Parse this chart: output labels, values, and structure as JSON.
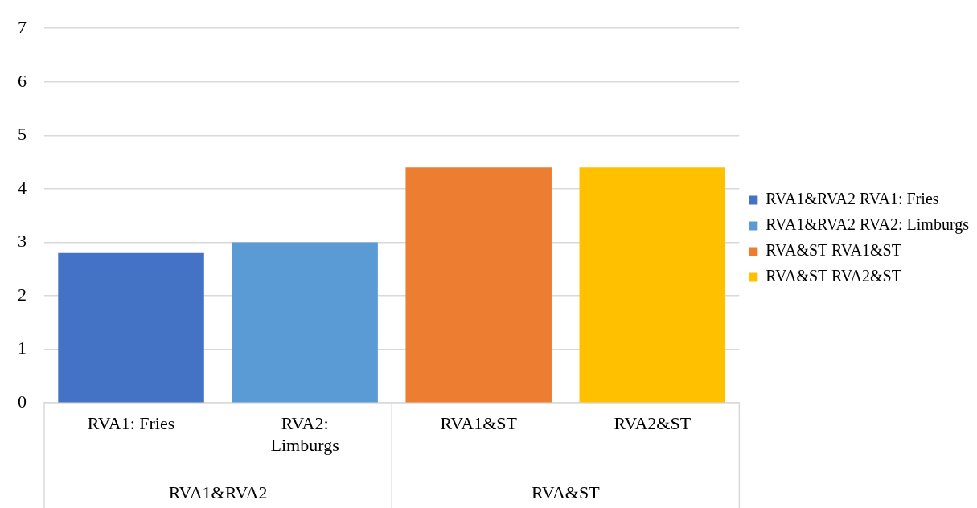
{
  "chart_data": {
    "type": "bar",
    "categories": [
      "RVA1: Fries",
      "RVA2: Limburgs",
      "RVA1&ST",
      "RVA2&ST"
    ],
    "series": [
      {
        "name": "RVA1&RVA2 RVA1: Fries",
        "color": "#4472c4",
        "values": [
          2.8,
          null,
          null,
          null
        ]
      },
      {
        "name": "RVA1&RVA2 RVA2: Limburgs",
        "color": "#5b9bd5",
        "values": [
          null,
          3.0,
          null,
          null
        ]
      },
      {
        "name": "RVA&ST RVA1&ST",
        "color": "#ed7d31",
        "values": [
          null,
          null,
          4.4,
          null
        ]
      },
      {
        "name": "RVA&ST RVA2&ST",
        "color": "#ffc000",
        "values": [
          null,
          null,
          null,
          4.4
        ]
      }
    ],
    "annotations": [
      "RVA1&RVA2",
      "RVA&ST"
    ],
    "ylim": [
      0,
      7
    ],
    "yticks": [
      0,
      1,
      2,
      3,
      4,
      5,
      6,
      7
    ],
    "grid": "y",
    "legend": "right"
  }
}
